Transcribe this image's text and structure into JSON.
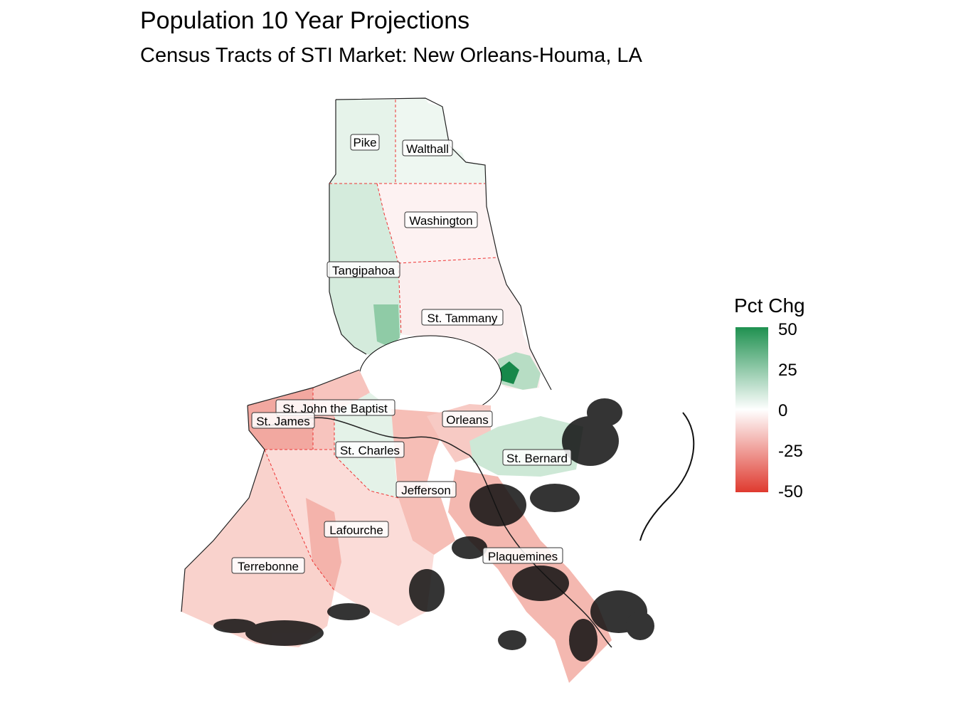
{
  "title": "Population 10 Year Projections",
  "subtitle": "Census Tracts of STI Market: New Orleans-Houma, LA",
  "legend": {
    "title": "Pct Chg",
    "breaks": [
      {
        "label": "50",
        "value": 50
      },
      {
        "label": "25",
        "value": 25
      },
      {
        "label": "0",
        "value": 0
      },
      {
        "label": "-25",
        "value": -25
      },
      {
        "label": "-50",
        "value": -50
      }
    ],
    "colors": {
      "high": "#1f9150",
      "mid": "#ffffff",
      "low": "#df3a2f"
    }
  },
  "parishes": [
    {
      "name": "Pike",
      "trend": "growth"
    },
    {
      "name": "Walthall",
      "trend": "growth"
    },
    {
      "name": "Washington",
      "trend": "decline"
    },
    {
      "name": "Tangipahoa",
      "trend": "growth"
    },
    {
      "name": "St. Tammany",
      "trend": "mixed"
    },
    {
      "name": "St. John the Baptist",
      "trend": "decline"
    },
    {
      "name": "St. James",
      "trend": "decline"
    },
    {
      "name": "Orleans",
      "trend": "decline"
    },
    {
      "name": "St. Charles",
      "trend": "growth"
    },
    {
      "name": "St. Bernard",
      "trend": "growth"
    },
    {
      "name": "Jefferson",
      "trend": "decline"
    },
    {
      "name": "Lafourche",
      "trend": "decline"
    },
    {
      "name": "Plaquemines",
      "trend": "decline"
    },
    {
      "name": "Terrebonne",
      "trend": "decline"
    }
  ]
}
